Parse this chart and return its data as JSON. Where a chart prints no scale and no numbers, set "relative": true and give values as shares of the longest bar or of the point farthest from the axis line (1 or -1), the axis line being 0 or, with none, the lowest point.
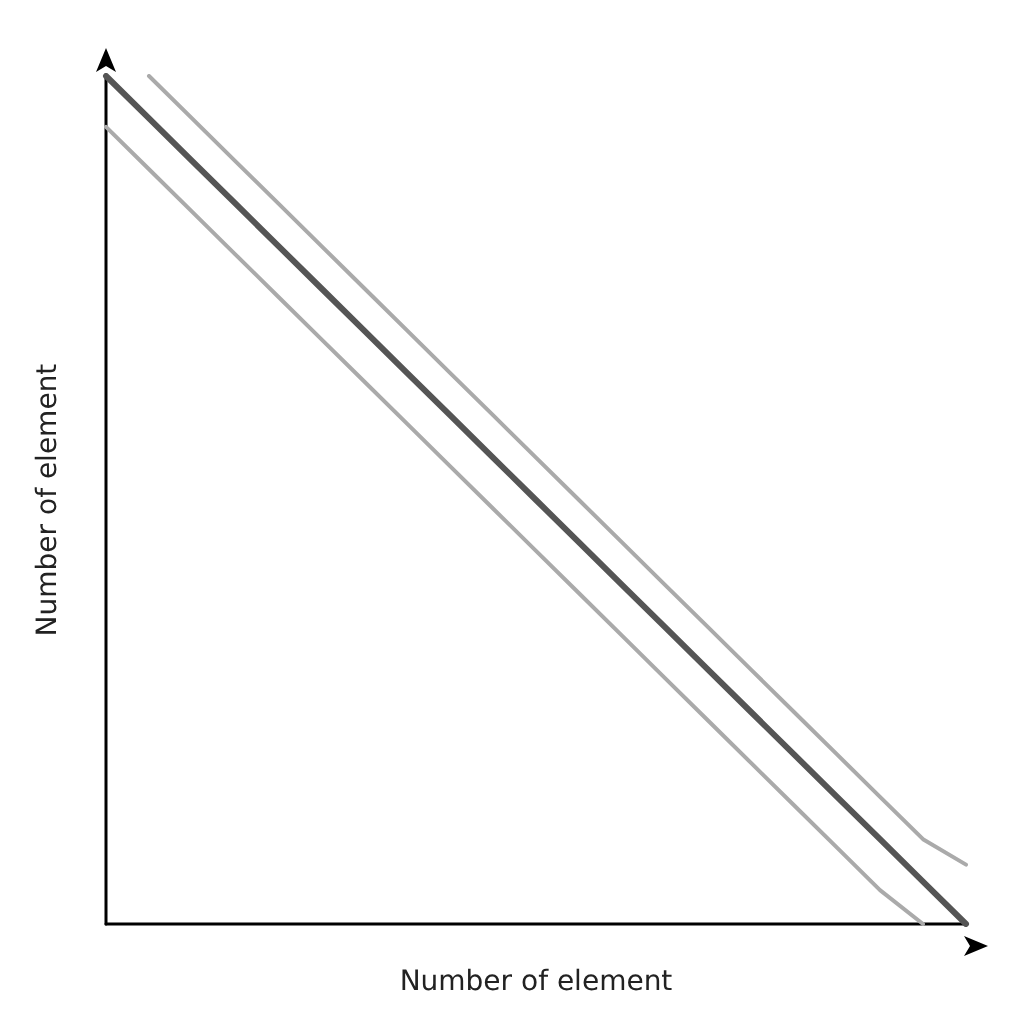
{
  "chart_data": {
    "type": "line",
    "relative": true,
    "xlabel": "Number of element",
    "ylabel": "Number of element",
    "grid": false,
    "marker": "none",
    "line_style": "solid",
    "categories": [
      null,
      null,
      null,
      null,
      null,
      null,
      null,
      null,
      null,
      null,
      null,
      null,
      null,
      null,
      null,
      null,
      null,
      null,
      null,
      null,
      null
    ],
    "series": [
      {
        "color": "#aaaaaa",
        "values": [
          null,
          1,
          0.95,
          0.9,
          0.85,
          0.8,
          0.75,
          0.7,
          0.65,
          0.6,
          0.55,
          0.5,
          0.45,
          0.4,
          0.35,
          0.3,
          0.25,
          0.2,
          0.15,
          0.1,
          0.07
        ]
      },
      {
        "color": "#555555",
        "values": [
          1,
          0.95,
          0.9,
          0.85,
          0.8,
          0.75,
          0.7,
          0.65,
          0.6,
          0.55,
          0.5,
          0.45,
          0.4,
          0.35,
          0.3,
          0.25,
          0.2,
          0.15,
          0.1,
          0.05,
          0
        ]
      },
      {
        "color": "#aaaaaa",
        "values": [
          0.94,
          0.89,
          0.84,
          0.79,
          0.74,
          0.69,
          0.64,
          0.59,
          0.54,
          0.49,
          0.44,
          0.39,
          0.34,
          0.29,
          0.24,
          0.19,
          0.14,
          0.09,
          0.04,
          0,
          null
        ]
      }
    ]
  }
}
